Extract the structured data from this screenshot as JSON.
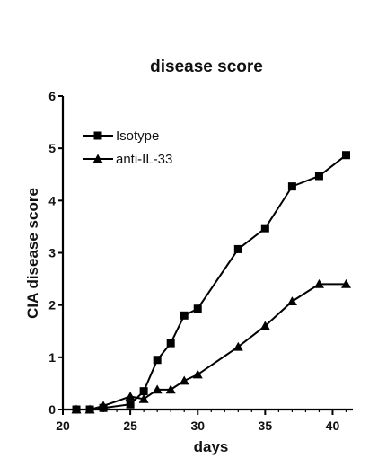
{
  "chart_data": {
    "type": "line",
    "title": "disease score",
    "xlabel": "days",
    "ylabel": "CIA disease score",
    "xlim": [
      20,
      41.5
    ],
    "ylim": [
      0,
      6
    ],
    "xticks": [
      20,
      25,
      30,
      35,
      40
    ],
    "yticks": [
      0,
      1,
      2,
      3,
      4,
      5,
      6
    ],
    "grid": false,
    "legend_position": "top-left",
    "series": [
      {
        "name": "Isotype",
        "marker": "square",
        "color": "#000000",
        "points": [
          {
            "x": 21,
            "y": 0
          },
          {
            "x": 22,
            "y": 0
          },
          {
            "x": 23,
            "y": 0.03
          },
          {
            "x": 25,
            "y": 0.1
          },
          {
            "x": 26,
            "y": 0.35
          },
          {
            "x": 27,
            "y": 0.95
          },
          {
            "x": 28,
            "y": 1.27
          },
          {
            "x": 29,
            "y": 1.8
          },
          {
            "x": 30,
            "y": 1.93
          },
          {
            "x": 33,
            "y": 3.07
          },
          {
            "x": 35,
            "y": 3.47
          },
          {
            "x": 37,
            "y": 4.27
          },
          {
            "x": 39,
            "y": 4.47
          },
          {
            "x": 41,
            "y": 4.87
          }
        ]
      },
      {
        "name": "anti-IL-33",
        "marker": "triangle",
        "color": "#000000",
        "points": [
          {
            "x": 21,
            "y": 0
          },
          {
            "x": 22,
            "y": 0
          },
          {
            "x": 23,
            "y": 0.07
          },
          {
            "x": 25,
            "y": 0.25
          },
          {
            "x": 26,
            "y": 0.2
          },
          {
            "x": 27,
            "y": 0.38
          },
          {
            "x": 28,
            "y": 0.38
          },
          {
            "x": 29,
            "y": 0.55
          },
          {
            "x": 30,
            "y": 0.67
          },
          {
            "x": 33,
            "y": 1.2
          },
          {
            "x": 35,
            "y": 1.6
          },
          {
            "x": 37,
            "y": 2.07
          },
          {
            "x": 39,
            "y": 2.4
          },
          {
            "x": 41,
            "y": 2.4
          }
        ]
      }
    ]
  }
}
